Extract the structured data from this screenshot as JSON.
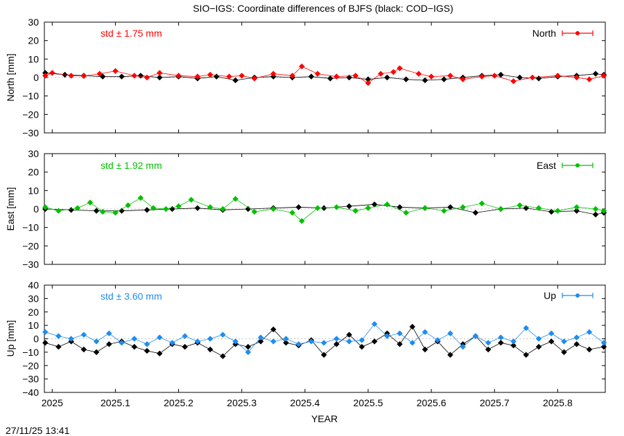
{
  "figure": {
    "title": "SIO−IGS: Coordinate differences of BJFS (black: COD−IGS)",
    "xlabel": "YEAR",
    "timestamp": "27/11/25 13:41",
    "x_ticks": [
      "2025",
      "2025.1",
      "2025.2",
      "2025.3",
      "2025.4",
      "2025.5",
      "2025.6",
      "2025.7",
      "2025.8"
    ]
  },
  "chart_data": [
    {
      "type": "scatter",
      "panel": "North",
      "ylabel": "North [mm]",
      "legend": "North",
      "legend_position": "top-right",
      "std_label": "std ± 1.75 mm",
      "std_mm": 1.75,
      "color": "#ff0000",
      "reference_color": "#000000",
      "x_range": [
        2024.9876,
        2025.8753
      ],
      "y_range": [
        -30,
        30
      ],
      "y_ticks": [
        -30,
        -20,
        -10,
        0,
        10,
        20,
        30
      ],
      "series": [
        {
          "name": "SIO−IGS",
          "x": [
            2024.989,
            2025.0,
            2025.03,
            2025.05,
            2025.075,
            2025.1,
            2025.13,
            2025.15,
            2025.17,
            2025.2,
            2025.23,
            2025.25,
            2025.28,
            2025.3,
            2025.32,
            2025.35,
            2025.38,
            2025.395,
            2025.42,
            2025.45,
            2025.48,
            2025.5,
            2025.52,
            2025.54,
            2025.55,
            2025.58,
            2025.6,
            2025.63,
            2025.65,
            2025.68,
            2025.7,
            2025.73,
            2025.76,
            2025.8,
            2025.83,
            2025.85,
            2025.873
          ],
          "y": [
            1.0,
            2.5,
            1.0,
            0.8,
            2.0,
            3.5,
            1.0,
            0.0,
            2.5,
            1.0,
            0.5,
            1.5,
            0.5,
            1.0,
            -0.5,
            2.0,
            1.0,
            6.0,
            2.0,
            0.5,
            1.0,
            -3.0,
            2.0,
            3.0,
            5.0,
            2.0,
            0.5,
            1.0,
            -1.0,
            0.5,
            1.0,
            -2.0,
            0.0,
            1.0,
            0.0,
            -1.0,
            1.0
          ]
        },
        {
          "name": "COD−IGS",
          "x": [
            2024.989,
            2025.02,
            2025.05,
            2025.08,
            2025.11,
            2025.14,
            2025.17,
            2025.2,
            2025.23,
            2025.26,
            2025.29,
            2025.32,
            2025.35,
            2025.38,
            2025.41,
            2025.44,
            2025.47,
            2025.5,
            2025.53,
            2025.56,
            2025.59,
            2025.62,
            2025.65,
            2025.68,
            2025.71,
            2025.74,
            2025.77,
            2025.8,
            2025.83,
            2025.86,
            2025.873
          ],
          "y": [
            2.5,
            1.5,
            1.0,
            0.5,
            0.5,
            1.0,
            0.0,
            0.5,
            -0.5,
            0.5,
            -1.5,
            0.0,
            0.5,
            0.0,
            0.5,
            -0.5,
            0.0,
            -1.0,
            0.0,
            -1.0,
            -1.5,
            -1.0,
            0.0,
            1.0,
            1.5,
            0.0,
            -0.5,
            0.5,
            1.0,
            2.0,
            1.5
          ]
        }
      ]
    },
    {
      "type": "scatter",
      "panel": "East",
      "ylabel": "East [mm]",
      "legend": "East",
      "legend_position": "top-right",
      "std_label": "std ± 1.92 mm",
      "std_mm": 1.92,
      "color": "#00c000",
      "reference_color": "#000000",
      "x_range": [
        2024.9876,
        2025.8753
      ],
      "y_range": [
        -30,
        30
      ],
      "y_ticks": [
        -30,
        -20,
        -10,
        0,
        10,
        20,
        30
      ],
      "series": [
        {
          "name": "SIO−IGS",
          "x": [
            2024.989,
            2025.01,
            2025.04,
            2025.06,
            2025.08,
            2025.1,
            2025.12,
            2025.14,
            2025.16,
            2025.18,
            2025.2,
            2025.22,
            2025.25,
            2025.27,
            2025.29,
            2025.32,
            2025.35,
            2025.38,
            2025.395,
            2025.42,
            2025.45,
            2025.48,
            2025.5,
            2025.53,
            2025.56,
            2025.59,
            2025.62,
            2025.65,
            2025.68,
            2025.71,
            2025.74,
            2025.77,
            2025.8,
            2025.83,
            2025.86,
            2025.873
          ],
          "y": [
            1.0,
            -1.0,
            0.5,
            3.5,
            -1.5,
            -2.0,
            2.0,
            6.0,
            0.5,
            0.0,
            1.5,
            5.0,
            1.0,
            0.0,
            5.5,
            -1.5,
            0.0,
            -2.0,
            -6.5,
            0.5,
            1.0,
            -1.0,
            0.5,
            2.5,
            -2.0,
            0.5,
            -1.0,
            1.0,
            3.0,
            0.0,
            2.0,
            0.5,
            -1.0,
            1.0,
            0.0,
            -1.0
          ]
        },
        {
          "name": "COD−IGS",
          "x": [
            2024.989,
            2025.03,
            2025.07,
            2025.11,
            2025.15,
            2025.19,
            2025.23,
            2025.27,
            2025.31,
            2025.35,
            2025.39,
            2025.43,
            2025.47,
            2025.51,
            2025.55,
            2025.59,
            2025.63,
            2025.67,
            2025.71,
            2025.75,
            2025.79,
            2025.83,
            2025.86,
            2025.873
          ],
          "y": [
            0.0,
            -0.5,
            -1.0,
            -1.0,
            -0.5,
            0.0,
            0.5,
            -0.5,
            0.0,
            0.5,
            1.0,
            0.5,
            1.5,
            2.5,
            1.0,
            0.5,
            1.0,
            -2.0,
            0.0,
            0.5,
            -1.5,
            -1.0,
            -3.0,
            -2.0
          ]
        }
      ]
    },
    {
      "type": "scatter",
      "panel": "Up",
      "ylabel": "Up [mm]",
      "legend": "Up",
      "legend_position": "top-right",
      "std_label": "std ± 3.60 mm",
      "std_mm": 3.6,
      "color": "#1e8cf0",
      "reference_color": "#000000",
      "x_range": [
        2024.9876,
        2025.8753
      ],
      "y_range": [
        -40,
        40
      ],
      "y_ticks": [
        -40,
        -30,
        -20,
        -10,
        0,
        10,
        20,
        30,
        40
      ],
      "series": [
        {
          "name": "SIO−IGS",
          "x": [
            2024.989,
            2025.01,
            2025.03,
            2025.05,
            2025.07,
            2025.09,
            2025.11,
            2025.13,
            2025.15,
            2025.17,
            2025.19,
            2025.21,
            2025.23,
            2025.25,
            2025.27,
            2025.29,
            2025.31,
            2025.33,
            2025.35,
            2025.37,
            2025.39,
            2025.41,
            2025.43,
            2025.45,
            2025.47,
            2025.49,
            2025.51,
            2025.53,
            2025.55,
            2025.57,
            2025.59,
            2025.61,
            2025.63,
            2025.65,
            2025.67,
            2025.69,
            2025.71,
            2025.73,
            2025.75,
            2025.77,
            2025.79,
            2025.81,
            2025.83,
            2025.85,
            2025.873
          ],
          "y": [
            5.0,
            2.0,
            0.0,
            3.0,
            -2.0,
            4.0,
            -3.0,
            0.0,
            -4.0,
            1.0,
            -3.0,
            2.0,
            -2.0,
            0.0,
            3.0,
            -2.0,
            -10.0,
            1.0,
            -2.0,
            0.0,
            -4.0,
            -2.0,
            -3.0,
            0.0,
            -2.0,
            -1.0,
            11.0,
            2.0,
            4.0,
            -3.0,
            5.0,
            -1.0,
            4.0,
            -6.0,
            2.0,
            -3.0,
            1.0,
            -2.0,
            8.0,
            0.0,
            4.0,
            -2.0,
            1.0,
            5.0,
            -3.0
          ]
        },
        {
          "name": "COD−IGS",
          "x": [
            2024.989,
            2025.01,
            2025.03,
            2025.05,
            2025.07,
            2025.09,
            2025.11,
            2025.13,
            2025.15,
            2025.17,
            2025.19,
            2025.21,
            2025.23,
            2025.25,
            2025.27,
            2025.29,
            2025.31,
            2025.33,
            2025.35,
            2025.37,
            2025.39,
            2025.41,
            2025.43,
            2025.45,
            2025.47,
            2025.49,
            2025.51,
            2025.53,
            2025.55,
            2025.57,
            2025.59,
            2025.61,
            2025.63,
            2025.65,
            2025.67,
            2025.69,
            2025.71,
            2025.73,
            2025.75,
            2025.77,
            2025.79,
            2025.81,
            2025.83,
            2025.85,
            2025.873
          ],
          "y": [
            -3.0,
            -6.0,
            -2.0,
            -8.0,
            -10.0,
            -4.0,
            -2.0,
            -6.0,
            -9.0,
            -11.0,
            -4.0,
            -6.0,
            -3.0,
            -8.0,
            -13.0,
            -4.0,
            -6.0,
            -2.0,
            7.0,
            -3.0,
            -5.0,
            -1.0,
            -12.0,
            -4.0,
            3.0,
            -6.0,
            -2.0,
            4.0,
            -4.0,
            9.0,
            -8.0,
            -2.0,
            -12.0,
            -4.0,
            2.0,
            -8.0,
            -3.0,
            -5.0,
            -12.0,
            -6.0,
            -2.0,
            -10.0,
            -4.0,
            -8.0,
            -6.0
          ]
        }
      ]
    }
  ]
}
